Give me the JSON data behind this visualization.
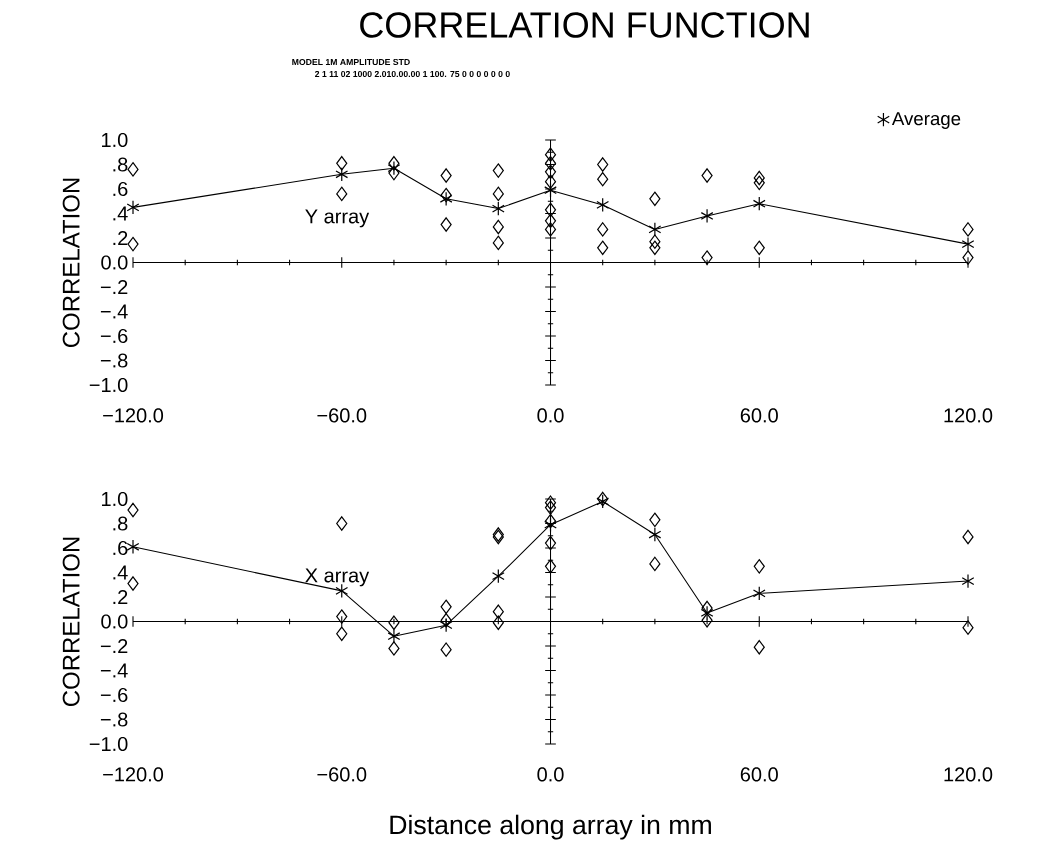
{
  "chart_data": [
    {
      "type": "scatter",
      "title": "CORRELATION FUNCTION",
      "subtitle": "MODEL 1M AMPLITUDE STD",
      "ylabel": "CORRELATION",
      "annotations": [
        "2 1 11 02 1000 2.010.00.00 1 100. 75 0 0 0 0 0 0 0",
        "Y array"
      ],
      "xlim": [
        -120,
        120
      ],
      "xticks": [
        {
          "value": -120,
          "label": "−120.0"
        },
        {
          "value": -60,
          "label": "−60.0"
        },
        {
          "value": 0,
          "label": "0.0"
        },
        {
          "value": 60,
          "label": "60.0"
        },
        {
          "value": 120,
          "label": "120.0"
        }
      ],
      "ylim": [
        -1,
        1
      ],
      "yticks": [
        {
          "value": 1,
          "label": "1.0"
        },
        {
          "value": 0.8,
          "label": ".8"
        },
        {
          "value": 0.6,
          "label": ".6"
        },
        {
          "value": 0.4,
          "label": ".4"
        },
        {
          "value": 0.2,
          "label": ".2"
        },
        {
          "value": 0,
          "label": "0.0"
        },
        {
          "value": -0.2,
          "label": "−.2"
        },
        {
          "value": -0.4,
          "label": "−.4"
        },
        {
          "value": -0.6,
          "label": "−.6"
        },
        {
          "value": -0.8,
          "label": "−.8"
        },
        {
          "value": -1,
          "label": "−1.0"
        }
      ],
      "legend": "top right",
      "series": [
        {
          "marker": "diamond",
          "color": "#000000",
          "x": [
            -120,
            -120,
            -60,
            -60,
            -45,
            -45,
            -30,
            -30,
            -30,
            -15,
            -15,
            -15,
            -15,
            0,
            0,
            0,
            0,
            0,
            0,
            0,
            15,
            15,
            15,
            15,
            30,
            30,
            30,
            45,
            45,
            60,
            60,
            60,
            120,
            120
          ],
          "values": [
            0.76,
            0.15,
            0.81,
            0.56,
            0.81,
            0.73,
            0.71,
            0.55,
            0.31,
            0.75,
            0.56,
            0.29,
            0.16,
            0.88,
            0.81,
            0.74,
            0.66,
            0.43,
            0.34,
            0.27,
            0.8,
            0.68,
            0.27,
            0.12,
            0.52,
            0.17,
            0.12,
            0.71,
            0.04,
            0.69,
            0.65,
            0.12,
            0.27,
            0.04
          ]
        },
        {
          "name": "Average",
          "type": "line",
          "marker": "cross",
          "line_style": "solid",
          "color": "#000000",
          "x": [
            -120,
            -60,
            -45,
            -30,
            -15,
            0,
            15,
            30,
            45,
            60,
            120
          ],
          "values": [
            0.45,
            0.72,
            0.77,
            0.52,
            0.44,
            0.59,
            0.47,
            0.27,
            0.38,
            0.48,
            0.15
          ]
        }
      ]
    },
    {
      "type": "scatter",
      "ylabel": "CORRELATION",
      "xlabel": "Distance along array in mm",
      "annotations": [
        "X array"
      ],
      "xlim": [
        -120,
        120
      ],
      "xticks": [
        {
          "value": -120,
          "label": "−120.0"
        },
        {
          "value": -60,
          "label": "−60.0"
        },
        {
          "value": 0,
          "label": "0.0"
        },
        {
          "value": 60,
          "label": "60.0"
        },
        {
          "value": 120,
          "label": "120.0"
        }
      ],
      "ylim": [
        -1,
        1
      ],
      "yticks": [
        {
          "value": 1,
          "label": "1.0"
        },
        {
          "value": 0.8,
          "label": ".8"
        },
        {
          "value": 0.6,
          "label": ".6"
        },
        {
          "value": 0.4,
          "label": ".4"
        },
        {
          "value": 0.2,
          "label": ".2"
        },
        {
          "value": 0,
          "label": "0.0"
        },
        {
          "value": -0.2,
          "label": "−.2"
        },
        {
          "value": -0.4,
          "label": "−.4"
        },
        {
          "value": -0.6,
          "label": "−.6"
        },
        {
          "value": -0.8,
          "label": "−.8"
        },
        {
          "value": -1,
          "label": "−1.0"
        }
      ],
      "series": [
        {
          "marker": "diamond",
          "color": "#000000",
          "x": [
            -120,
            -120,
            -60,
            -60,
            -60,
            -45,
            -45,
            -30,
            -30,
            -30,
            -15,
            -15,
            -15,
            -15,
            0,
            0,
            0,
            0,
            0,
            15,
            30,
            30,
            45,
            45,
            60,
            60,
            120,
            120
          ],
          "values": [
            0.91,
            0.31,
            0.8,
            0.04,
            -0.1,
            -0.01,
            -0.22,
            0.12,
            0.01,
            -0.23,
            0.71,
            0.69,
            0.08,
            -0.01,
            0.97,
            0.93,
            0.82,
            0.64,
            0.45,
            1.0,
            0.83,
            0.47,
            0.11,
            0.01,
            0.45,
            -0.21,
            0.69,
            -0.05
          ]
        },
        {
          "type": "line",
          "marker": "cross",
          "line_style": "solid",
          "color": "#000000",
          "x": [
            -120,
            -60,
            -45,
            -30,
            -15,
            0,
            15,
            30,
            45,
            60,
            120
          ],
          "values": [
            0.61,
            0.25,
            -0.12,
            -0.03,
            0.37,
            0.79,
            0.98,
            0.71,
            0.07,
            0.23,
            0.33
          ]
        }
      ]
    }
  ]
}
